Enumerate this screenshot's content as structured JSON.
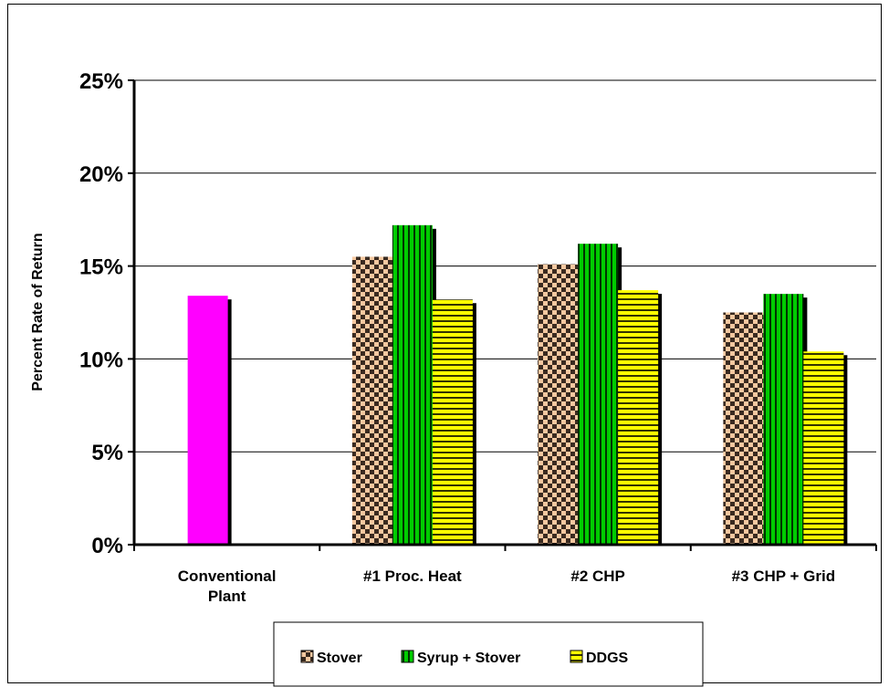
{
  "chart_data": {
    "type": "bar",
    "ylabel": "Percent Rate of Return",
    "ylim": [
      0,
      25
    ],
    "ytick_labels": [
      "0%",
      "5%",
      "10%",
      "15%",
      "20%",
      "25%"
    ],
    "yticks": [
      0,
      5,
      10,
      15,
      20,
      25
    ],
    "grid": true,
    "legend_position": "bottom",
    "categories": [
      {
        "lines": [
          "Conventional",
          "Plant"
        ]
      },
      {
        "lines": [
          "#1 Proc. Heat"
        ]
      },
      {
        "lines": [
          "#2 CHP"
        ]
      },
      {
        "lines": [
          "#3 CHP + Grid"
        ]
      }
    ],
    "series": [
      {
        "name": "Stover",
        "values": [
          null,
          15.5,
          15.1,
          12.5
        ],
        "color": "#f5c8a0",
        "pattern": "checker"
      },
      {
        "name": "Syrup + Stover",
        "values": [
          null,
          17.2,
          16.2,
          13.5
        ],
        "color": "#00cc00",
        "pattern": "vertical-stripes"
      },
      {
        "name": "DDGS",
        "values": [
          null,
          13.2,
          13.7,
          10.4
        ],
        "color": "#ffff00",
        "pattern": "horizontal-stripes"
      }
    ],
    "standalone": {
      "category_index": 0,
      "value": 13.4,
      "color": "#ff00ff"
    }
  }
}
